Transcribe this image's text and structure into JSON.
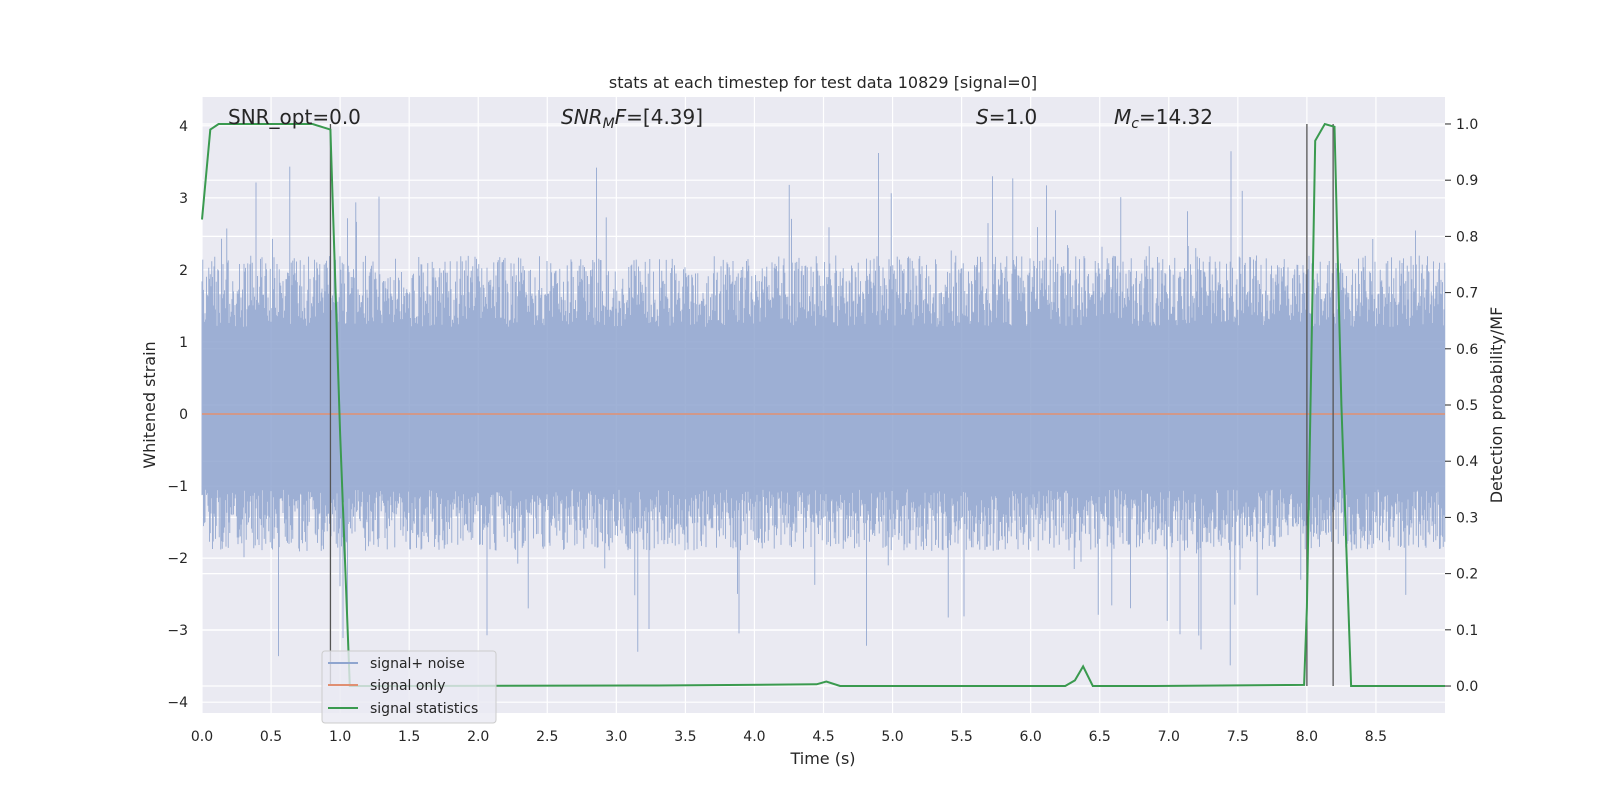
{
  "chart_data": {
    "type": "line",
    "title": "stats at each timestep for test data 10829 [signal=0]",
    "xlabel": "Time (s)",
    "ylabel": "Whitened strain",
    "y2label": "Detection probability/MF",
    "xlim": [
      0,
      9
    ],
    "ylim": [
      -4.15,
      4.4
    ],
    "y2lim": [
      -0.048,
      1.048
    ],
    "grid": true,
    "legend_position": "lower-left",
    "xticks": [
      "0.0",
      "0.5",
      "1.0",
      "1.5",
      "2.0",
      "2.5",
      "3.0",
      "3.5",
      "4.0",
      "4.5",
      "5.0",
      "5.5",
      "6.0",
      "6.5",
      "7.0",
      "7.5",
      "8.0",
      "8.5"
    ],
    "yticks": [
      "4",
      "3",
      "2",
      "1",
      "0",
      "−1",
      "−2",
      "−3",
      "−4"
    ],
    "y2ticks": [
      "1.0",
      "0.9",
      "0.8",
      "0.7",
      "0.6",
      "0.5",
      "0.4",
      "0.3",
      "0.2",
      "0.1",
      "0.0"
    ],
    "annotations": [
      {
        "prefix": "SNR_opt=",
        "value": "0.0"
      },
      {
        "prefix": "SNR",
        "sub": "M",
        "suffix": "F=",
        "value": "[4.39]"
      },
      {
        "prefix": "S",
        "suffix": "=",
        "value": "1.0"
      },
      {
        "prefix": "M",
        "sub": "c",
        "suffix": "=",
        "value": "14.32"
      }
    ],
    "vertical_lines_x": [
      0.93,
      8.0,
      8.19
    ],
    "noise_band": {
      "typical_low": -1.9,
      "typical_high": 2.2,
      "max": 4.0,
      "min": -3.8
    },
    "series": [
      {
        "name": "signal+ noise",
        "color": "#8fa5cf",
        "axis": "left",
        "values": "dense whitened noise, ±~2.2 typical"
      },
      {
        "name": "signal only",
        "color": "#e08f72",
        "axis": "left",
        "values": [
          [
            0,
            0
          ],
          [
            9,
            0
          ]
        ]
      },
      {
        "name": "signal statistics",
        "color": "#3a9a4f",
        "axis": "right",
        "points": [
          [
            0,
            0.83
          ],
          [
            0.06,
            0.99
          ],
          [
            0.12,
            1.0
          ],
          [
            0.5,
            1.0
          ],
          [
            0.8,
            1.0
          ],
          [
            0.93,
            0.99
          ],
          [
            1.0,
            0.45
          ],
          [
            1.07,
            0.0
          ],
          [
            1.5,
            0.0
          ],
          [
            3.3,
            0.001
          ],
          [
            4.45,
            0.003
          ],
          [
            4.52,
            0.008
          ],
          [
            4.62,
            0.0
          ],
          [
            6.25,
            0.0
          ],
          [
            6.32,
            0.01
          ],
          [
            6.38,
            0.035
          ],
          [
            6.45,
            0.0
          ],
          [
            6.9,
            0.0
          ],
          [
            7.98,
            0.002
          ],
          [
            8.0,
            0.14
          ],
          [
            8.06,
            0.97
          ],
          [
            8.13,
            1.0
          ],
          [
            8.2,
            0.995
          ],
          [
            8.25,
            0.5
          ],
          [
            8.32,
            0.0
          ],
          [
            9,
            0.0
          ]
        ]
      }
    ]
  }
}
